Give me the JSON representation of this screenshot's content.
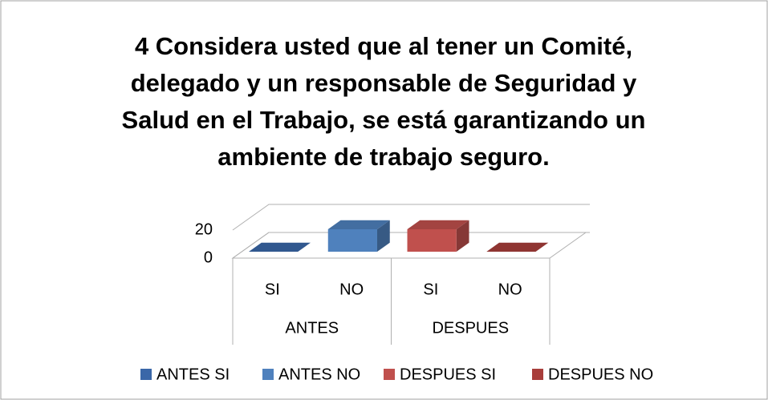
{
  "chart_data": {
    "type": "bar3d",
    "title": "4 Considera usted que al tener un Comité, delegado y un responsable de Seguridad y Salud en el Trabajo, se está garantizando un ambiente de trabajo seguro.",
    "categories": [
      "SI",
      "NO",
      "SI",
      "NO"
    ],
    "groups": [
      "ANTES",
      "DESPUES"
    ],
    "series": [
      {
        "name": "ANTES SI",
        "color": "#3a67a8",
        "values": [
          0,
          null,
          null,
          null
        ]
      },
      {
        "name": "ANTES NO",
        "color": "#4f81bd",
        "values": [
          null,
          16,
          null,
          null
        ]
      },
      {
        "name": "DESPUES SI",
        "color": "#c0504d",
        "values": [
          null,
          null,
          16,
          null
        ]
      },
      {
        "name": "DESPUES NO",
        "color": "#a83e3b",
        "values": [
          null,
          null,
          null,
          0
        ]
      }
    ],
    "ylim": [
      0,
      20
    ],
    "yticks": [
      0,
      20
    ],
    "grid": true
  }
}
